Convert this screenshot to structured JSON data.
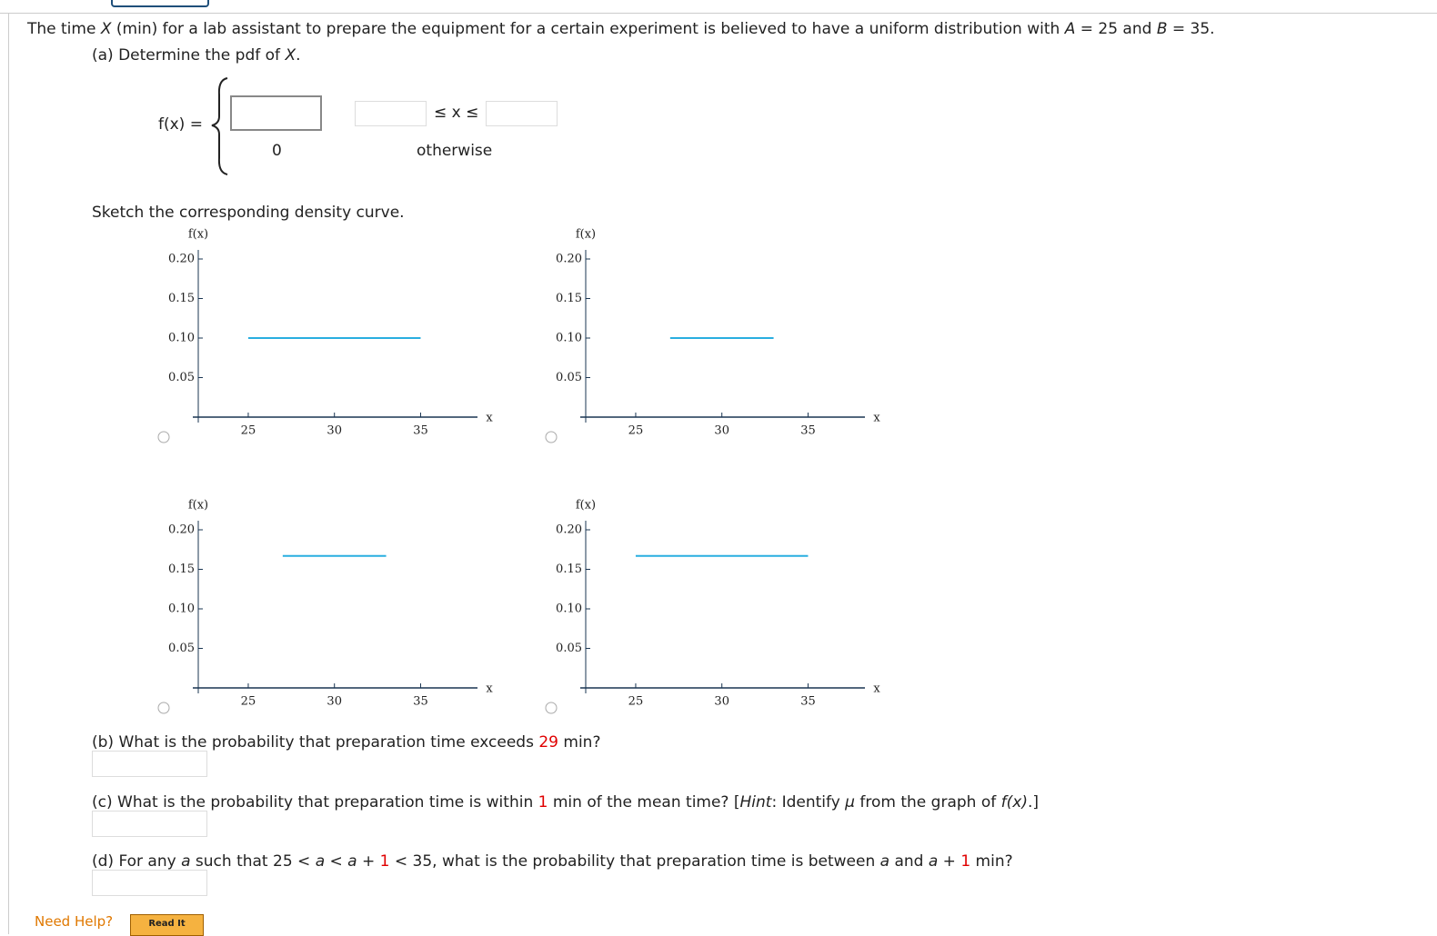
{
  "intro": [
    "The time ",
    "X",
    " (min) for a lab assistant to prepare the equipment for a certain experiment is believed to have a uniform distribution with ",
    "A",
    " = 25 and ",
    "B",
    " = 35."
  ],
  "part_a": {
    "prompt": [
      "(a) Determine the pdf of ",
      "X",
      "."
    ],
    "lhs": "f(x) =",
    "zero": "0",
    "range": "≤ x ≤",
    "otherwise": "otherwise",
    "sketch": "Sketch the corresponding density curve."
  },
  "graphs": [
    {
      "type": "line",
      "ylabel": "f(x)",
      "xlabel": "x",
      "x": [
        25,
        35
      ],
      "values": [
        0.1,
        0.1
      ],
      "color": "#29aee0",
      "xlim": [
        22.1,
        38.3
      ],
      "ylim": [
        0,
        0.2
      ],
      "xticks": [
        25,
        30,
        35
      ],
      "yticks": [
        {
          "value": 0.05,
          "label": "0.05"
        },
        {
          "value": 0.1,
          "label": "0.10"
        },
        {
          "value": 0.15,
          "label": "0.15"
        },
        {
          "value": 0.2,
          "label": "0.20"
        }
      ]
    },
    {
      "type": "line",
      "ylabel": "f(x)",
      "xlabel": "x",
      "x": [
        27,
        33
      ],
      "values": [
        0.1,
        0.1
      ],
      "color": "#29aee0",
      "xlim": [
        22.1,
        38.3
      ],
      "ylim": [
        0,
        0.2
      ],
      "xticks": [
        25,
        30,
        35
      ],
      "yticks": [
        {
          "value": 0.05,
          "label": "0.05"
        },
        {
          "value": 0.1,
          "label": "0.10"
        },
        {
          "value": 0.15,
          "label": "0.15"
        },
        {
          "value": 0.2,
          "label": "0.20"
        }
      ]
    },
    {
      "type": "line",
      "ylabel": "f(x)",
      "xlabel": "x",
      "x": [
        27,
        33
      ],
      "values": [
        0.167,
        0.167
      ],
      "color": "#29aee0",
      "xlim": [
        22.1,
        38.3
      ],
      "ylim": [
        0,
        0.2
      ],
      "xticks": [
        25,
        30,
        35
      ],
      "yticks": [
        {
          "value": 0.05,
          "label": "0.05"
        },
        {
          "value": 0.1,
          "label": "0.10"
        },
        {
          "value": 0.15,
          "label": "0.15"
        },
        {
          "value": 0.2,
          "label": "0.20"
        }
      ]
    },
    {
      "type": "line",
      "ylabel": "f(x)",
      "xlabel": "x",
      "x": [
        25,
        35
      ],
      "values": [
        0.167,
        0.167
      ],
      "color": "#29aee0",
      "xlim": [
        22.1,
        38.3
      ],
      "ylim": [
        0,
        0.2
      ],
      "xticks": [
        25,
        30,
        35
      ],
      "yticks": [
        {
          "value": 0.05,
          "label": "0.05"
        },
        {
          "value": 0.1,
          "label": "0.10"
        },
        {
          "value": 0.15,
          "label": "0.15"
        },
        {
          "value": 0.2,
          "label": "0.20"
        }
      ]
    }
  ],
  "part_b": [
    "(b) What is the probability that preparation time exceeds ",
    "29",
    " min?"
  ],
  "part_c": [
    "(c) What is the probability that preparation time is within ",
    "1",
    " min of the mean time? [",
    "Hint",
    ": Identify ",
    "μ",
    " from the graph of ",
    "f(x)",
    ".]"
  ],
  "part_d": [
    "(d) For any ",
    "a",
    " such that 25 < ",
    "a",
    " < ",
    "a",
    " + ",
    "1",
    " < 35, what is the probability that preparation time is between ",
    "a",
    " and ",
    "a",
    " + ",
    "1",
    " min?"
  ],
  "help": {
    "label": "Need Help?",
    "button": "Read It"
  }
}
